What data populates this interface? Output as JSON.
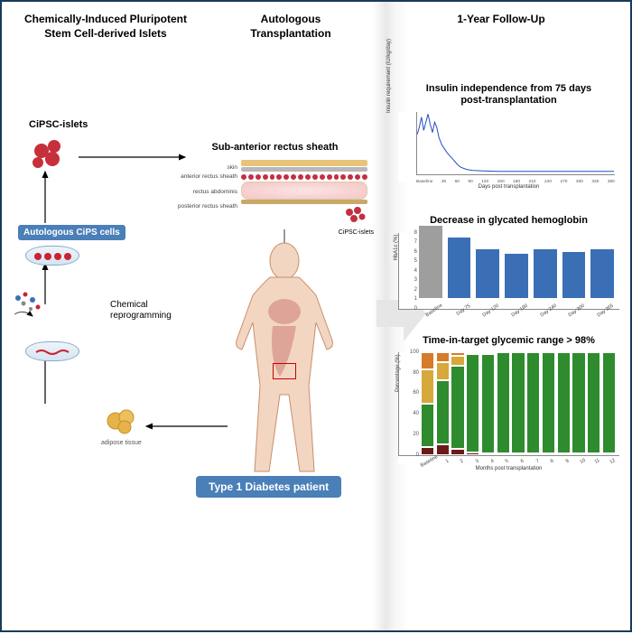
{
  "headers": {
    "col1_line1": "Chemically-Induced Pluripotent",
    "col1_line2": "Stem Cell-derived Islets",
    "col2_line1": "Autologous",
    "col2_line2": "Transplantation",
    "col3": "1-Year Follow-Up"
  },
  "left": {
    "cipsc_islets_label": "CiPSC-islets",
    "autologous_label": "Autologous CiPS cells",
    "reprogramming_label1": "Chemical",
    "reprogramming_label2": "reprogramming",
    "adipose_label": "adipose tissue",
    "islet_color": "#c72f3a",
    "dish_border": "#7fa6cc",
    "adipose_color": "#e8b24a"
  },
  "sheath": {
    "title": "Sub-anterior rectus sheath",
    "labels": [
      "skin",
      "anterior rectus sheath",
      "rectus abdominis",
      "posterior rectus sheath"
    ],
    "skin_color": "#e8c37a",
    "ant_color": "#b8b8b8",
    "post_color": "#c9a96a",
    "cell_color": "#c23040",
    "muscle_fill": "#f6d4d4",
    "cipsc_mini_label": "CiPSC-islets"
  },
  "patient": {
    "badge": "Type 1 Diabetes patient",
    "skin_color": "#f2d6c2",
    "outline": "#c98f6a",
    "blood_color": "#b84a4a"
  },
  "chart1": {
    "title1": "Insulin independence from 75 days",
    "title2": "post-transplantation",
    "y_label": "Insulin requirement (IU/kg/day)",
    "x_label": "Days post transplantation",
    "line_color": "#2050c0",
    "x_ticks": [
      "Baseline",
      "30",
      "60",
      "90",
      "120",
      "150",
      "180",
      "210",
      "240",
      "270",
      "300",
      "330",
      "360"
    ],
    "y_max": 60,
    "points": [
      [
        0,
        38
      ],
      [
        4,
        45
      ],
      [
        8,
        55
      ],
      [
        12,
        42
      ],
      [
        16,
        50
      ],
      [
        20,
        58
      ],
      [
        24,
        48
      ],
      [
        28,
        40
      ],
      [
        32,
        50
      ],
      [
        36,
        45
      ],
      [
        40,
        35
      ],
      [
        45,
        28
      ],
      [
        50,
        24
      ],
      [
        55,
        20
      ],
      [
        60,
        17
      ],
      [
        65,
        14
      ],
      [
        70,
        11
      ],
      [
        75,
        8
      ],
      [
        80,
        6
      ],
      [
        90,
        4
      ],
      [
        100,
        3
      ],
      [
        120,
        2.5
      ],
      [
        150,
        2
      ],
      [
        180,
        2
      ],
      [
        210,
        2
      ],
      [
        240,
        2
      ],
      [
        270,
        2
      ],
      [
        300,
        2
      ],
      [
        330,
        2
      ],
      [
        360,
        2
      ]
    ]
  },
  "chart2": {
    "title": "Decrease in glycated hemoglobin",
    "y_label": "HbA1c (%)",
    "y_max": 8,
    "y_ticks": [
      0,
      1,
      2,
      3,
      4,
      5,
      6,
      7,
      8
    ],
    "bars": [
      {
        "label": "Baseline",
        "value": 7.5,
        "color": "#9e9e9e"
      },
      {
        "label": "Day 75",
        "value": 6.3,
        "color": "#3b6fb5"
      },
      {
        "label": "Day 120",
        "value": 5.0,
        "color": "#3b6fb5"
      },
      {
        "label": "Day 180",
        "value": 4.6,
        "color": "#3b6fb5"
      },
      {
        "label": "Day 240",
        "value": 5.0,
        "color": "#3b6fb5"
      },
      {
        "label": "Day 300",
        "value": 4.8,
        "color": "#3b6fb5"
      },
      {
        "label": "Day 365",
        "value": 5.0,
        "color": "#3b6fb5"
      }
    ]
  },
  "chart3": {
    "title": "Time-in-target glycemic range > 98%",
    "y_label": "Percentage (%)",
    "x_label": "Months post transplantation",
    "y_ticks": [
      0,
      20,
      40,
      60,
      80,
      100
    ],
    "colors": {
      "dark": "#6b1a1a",
      "green": "#2e8b2e",
      "yellow": "#d6a93a",
      "orange": "#d67b2a"
    },
    "columns": [
      {
        "label": "Baseline",
        "seg": {
          "dark": 8,
          "green": 42,
          "yellow": 33,
          "orange": 17
        }
      },
      {
        "label": "1",
        "seg": {
          "dark": 10,
          "green": 63,
          "yellow": 17,
          "orange": 10
        }
      },
      {
        "label": "2",
        "seg": {
          "dark": 6,
          "green": 81,
          "yellow": 9,
          "orange": 4
        }
      },
      {
        "label": "3",
        "seg": {
          "dark": 2,
          "green": 96,
          "yellow": 2,
          "orange": 0
        }
      },
      {
        "label": "4",
        "seg": {
          "dark": 1,
          "green": 98,
          "yellow": 1,
          "orange": 0
        }
      },
      {
        "label": "5",
        "seg": {
          "dark": 1,
          "green": 99,
          "yellow": 0,
          "orange": 0
        }
      },
      {
        "label": "6",
        "seg": {
          "dark": 1,
          "green": 99,
          "yellow": 0,
          "orange": 0
        }
      },
      {
        "label": "7",
        "seg": {
          "dark": 1,
          "green": 99,
          "yellow": 0,
          "orange": 0
        }
      },
      {
        "label": "8",
        "seg": {
          "dark": 1,
          "green": 99,
          "yellow": 0,
          "orange": 0
        }
      },
      {
        "label": "9",
        "seg": {
          "dark": 1,
          "green": 99,
          "yellow": 0,
          "orange": 0
        }
      },
      {
        "label": "10",
        "seg": {
          "dark": 1,
          "green": 99,
          "yellow": 0,
          "orange": 0
        }
      },
      {
        "label": "11",
        "seg": {
          "dark": 1,
          "green": 99,
          "yellow": 0,
          "orange": 0
        }
      },
      {
        "label": "12",
        "seg": {
          "dark": 1,
          "green": 99,
          "yellow": 0,
          "orange": 0
        }
      }
    ]
  }
}
